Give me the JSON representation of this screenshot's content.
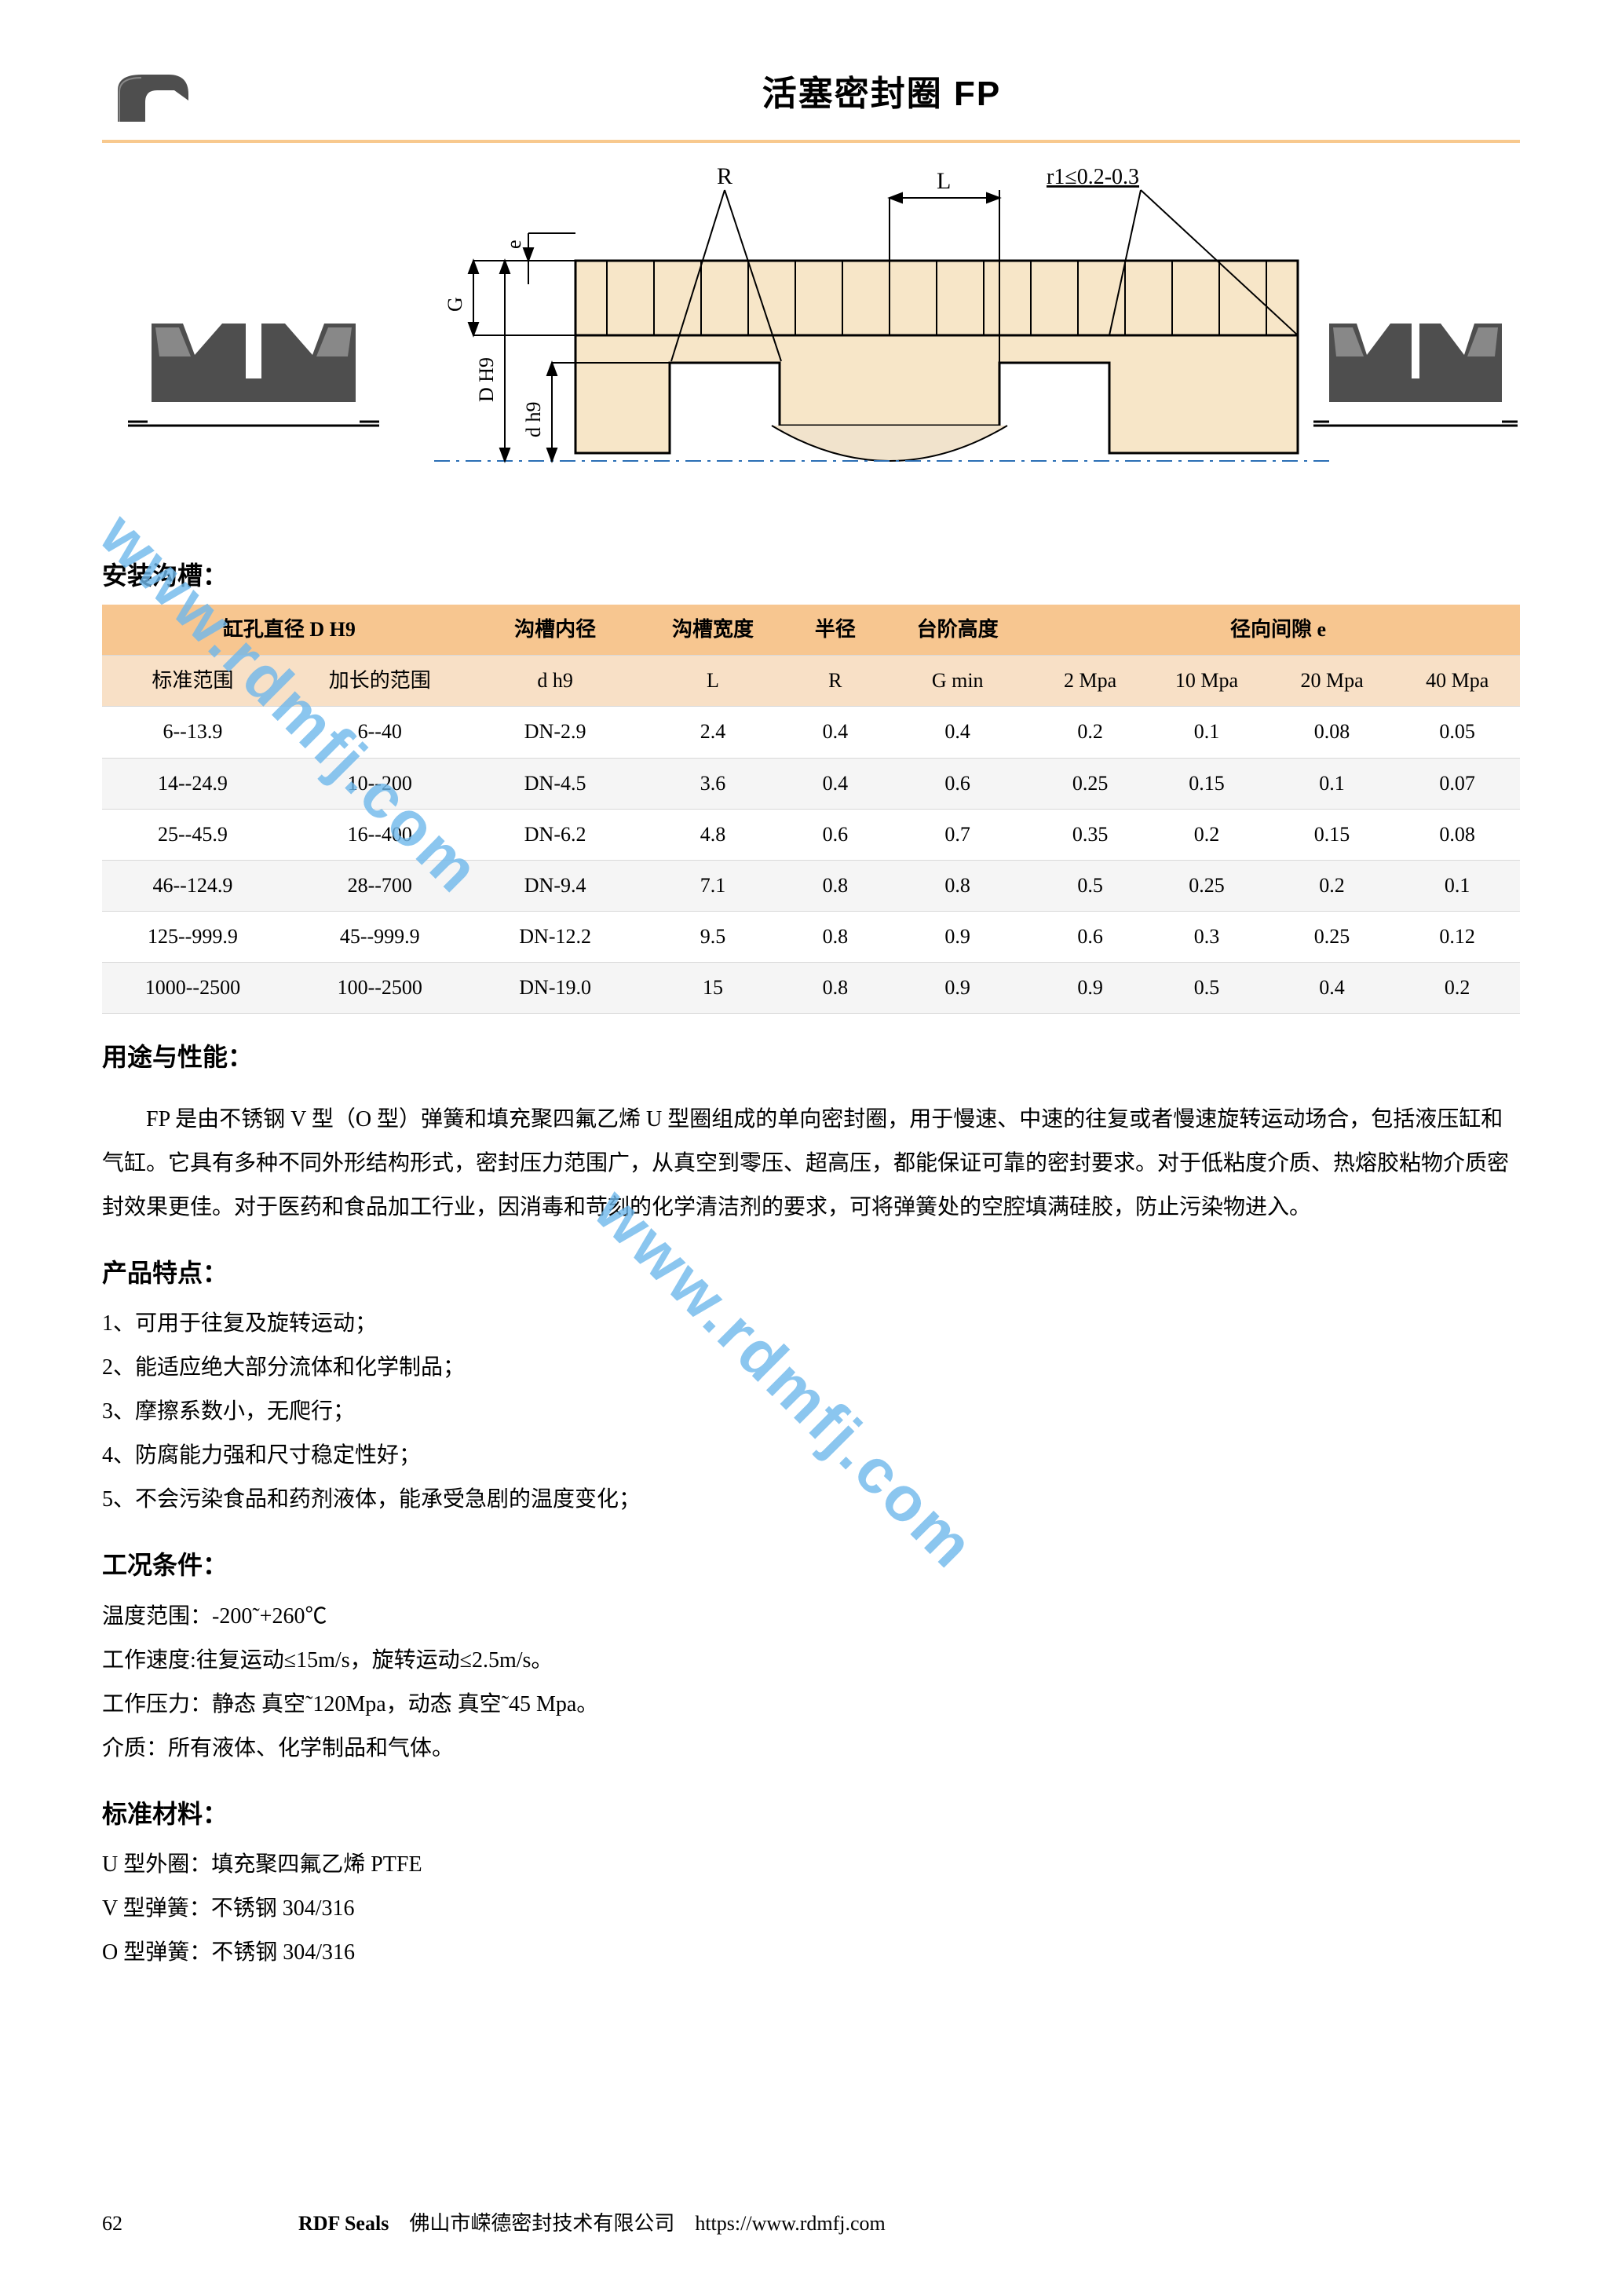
{
  "header": {
    "title": "活塞密封圈 FP",
    "accent_color": "#f7c690"
  },
  "diagram": {
    "labels": {
      "R": "R",
      "L": "L",
      "r1": "r1≤0.2-0.3",
      "G": "G",
      "e": "e",
      "D": "D H9",
      "d": "d h9"
    },
    "colors": {
      "shaft": "#f7e6c8",
      "seal": "#4e4e4e",
      "line": "#000000",
      "dim_blue": "#2b6fb5"
    }
  },
  "table": {
    "header_top_bg": "#f7c690",
    "header_sub_bg": "#f8e0c6",
    "row_alt_bg": "#f5f5f5",
    "columns_top": [
      {
        "label": "缸孔直径 D H9",
        "span": 2
      },
      {
        "label": "沟槽内径",
        "span": 1
      },
      {
        "label": "沟槽宽度",
        "span": 1
      },
      {
        "label": "半径",
        "span": 1
      },
      {
        "label": "台阶高度",
        "span": 1
      },
      {
        "label": "径向间隙 e",
        "span": 4
      }
    ],
    "columns_sub": [
      "标准范围",
      "加长的范围",
      "d h9",
      "L",
      "R",
      "G min",
      "2 Mpa",
      "10 Mpa",
      "20 Mpa",
      "40 Mpa"
    ],
    "rows": [
      [
        "6--13.9",
        "6--40",
        "DN-2.9",
        "2.4",
        "0.4",
        "0.4",
        "0.2",
        "0.1",
        "0.08",
        "0.05"
      ],
      [
        "14--24.9",
        "10--200",
        "DN-4.5",
        "3.6",
        "0.4",
        "0.6",
        "0.25",
        "0.15",
        "0.1",
        "0.07"
      ],
      [
        "25--45.9",
        "16--400",
        "DN-6.2",
        "4.8",
        "0.6",
        "0.7",
        "0.35",
        "0.2",
        "0.15",
        "0.08"
      ],
      [
        "46--124.9",
        "28--700",
        "DN-9.4",
        "7.1",
        "0.8",
        "0.8",
        "0.5",
        "0.25",
        "0.2",
        "0.1"
      ],
      [
        "125--999.9",
        "45--999.9",
        "DN-12.2",
        "9.5",
        "0.8",
        "0.9",
        "0.6",
        "0.3",
        "0.25",
        "0.12"
      ],
      [
        "1000--2500",
        "100--2500",
        "DN-19.0",
        "15",
        "0.8",
        "0.9",
        "0.9",
        "0.5",
        "0.4",
        "0.2"
      ]
    ]
  },
  "sections": {
    "install_heading": "安装沟槽：",
    "usage_heading": "用途与性能：",
    "usage_text": "FP 是由不锈钢 V 型（O 型）弹簧和填充聚四氟乙烯 U 型圈组成的单向密封圈，用于慢速、中速的往复或者慢速旋转运动场合，包括液压缸和气缸。它具有多种不同外形结构形式，密封压力范围广，从真空到零压、超高压，都能保证可靠的密封要求。对于低粘度介质、热熔胶粘物介质密封效果更佳。对于医药和食品加工行业，因消毒和苛刻的化学清洁剂的要求，可将弹簧处的空腔填满硅胶，防止污染物进入。",
    "features_heading": "产品特点：",
    "features": [
      "1、可用于往复及旋转运动；",
      "2、能适应绝大部分流体和化学制品；",
      "3、摩擦系数小，无爬行；",
      "4、防腐能力强和尺寸稳定性好；",
      "5、不会污染食品和药剂液体，能承受急剧的温度变化；"
    ],
    "conditions_heading": "工况条件：",
    "conditions": [
      "温度范围：-200˜+260℃",
      "工作速度:往复运动≤15m/s，旋转运动≤2.5m/s。",
      "工作压力：静态 真空˜120Mpa，动态 真空˜45 Mpa。",
      "介质：所有液体、化学制品和气体。"
    ],
    "materials_heading": "标准材料：",
    "materials": [
      "U 型外圈：填充聚四氟乙烯 PTFE",
      "V 型弹簧：不锈钢 304/316",
      "O 型弹簧：不锈钢 304/316"
    ]
  },
  "footer": {
    "page": "62",
    "brand": "RDF Seals",
    "company": "佛山市嵘德密封技术有限公司",
    "url": "https://www.rdmfj.com"
  },
  "watermark": "www.rdmfj.com"
}
